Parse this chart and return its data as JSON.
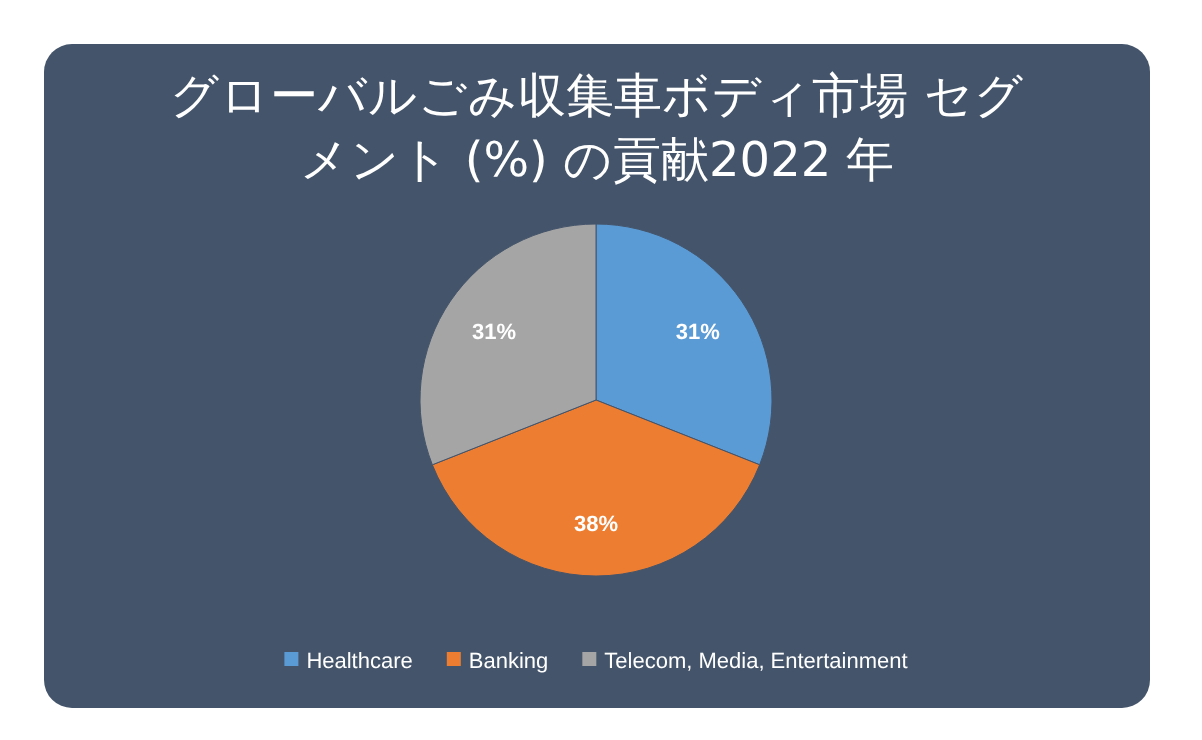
{
  "chart_data": {
    "type": "pie",
    "title": "グローバルごみ収集車ボディ市場 セグメント (%) の貢献2022 年",
    "categories": [
      "Healthcare",
      "Banking",
      "Telecom, Media, Entertainment"
    ],
    "values": [
      31,
      38,
      31
    ],
    "colors": [
      "#5b9bd5",
      "#ed7d31",
      "#a5a5a5"
    ],
    "value_labels": [
      "31%",
      "38%",
      "31%"
    ],
    "legend": "bottom"
  }
}
